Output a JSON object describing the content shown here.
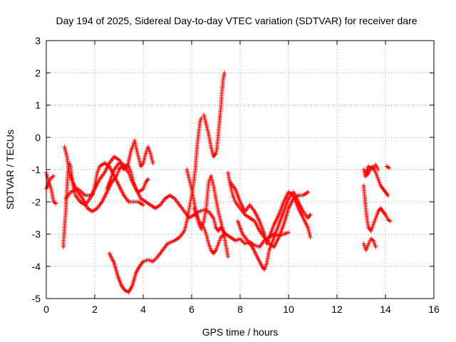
{
  "chart_data": {
    "type": "scatter",
    "title": "Day 194 of 2025, Sidereal Day-to-day VTEC variation (SDTVAR) for receiver dare",
    "xlabel": "GPS time / hours",
    "ylabel": "SDTVAR / TECUs",
    "xlim": [
      0,
      16
    ],
    "ylim": [
      -5,
      3
    ],
    "xticks": [
      "0",
      "2",
      "4",
      "6",
      "8",
      "10",
      "12",
      "14",
      "16"
    ],
    "yticks": [
      "-5",
      "-4",
      "-3",
      "-2",
      "-1",
      "0",
      "1",
      "2",
      "3"
    ],
    "grid": true,
    "marker": "plus",
    "colors": {
      "series": "#ff0000",
      "grid": "#a0a0a0"
    },
    "series": [
      {
        "points": [
          [
            0.0,
            -1.1
          ],
          [
            0.1,
            -1.4
          ],
          [
            0.2,
            -1.6
          ],
          [
            0.3,
            -2.0
          ],
          [
            0.4,
            -2.05
          ]
        ]
      },
      {
        "points": [
          [
            0.0,
            -1.6
          ],
          [
            0.15,
            -1.3
          ],
          [
            0.3,
            -1.2
          ]
        ]
      },
      {
        "points": [
          [
            0.7,
            -3.4
          ],
          [
            0.75,
            -2.8
          ],
          [
            0.8,
            -2.3
          ],
          [
            0.85,
            -1.6
          ],
          [
            0.9,
            -1.0
          ],
          [
            0.95,
            -0.8
          ],
          [
            1.0,
            -0.9
          ],
          [
            1.05,
            -1.2
          ],
          [
            1.1,
            -1.5
          ],
          [
            1.2,
            -1.8
          ],
          [
            1.4,
            -2.0
          ],
          [
            1.6,
            -2.1
          ],
          [
            1.8,
            -1.9
          ],
          [
            2.0,
            -1.6
          ],
          [
            2.2,
            -1.3
          ],
          [
            2.4,
            -1.1
          ],
          [
            2.6,
            -0.8
          ],
          [
            2.8,
            -0.6
          ],
          [
            3.0,
            -0.7
          ],
          [
            3.2,
            -0.9
          ],
          [
            3.4,
            -1.1
          ],
          [
            3.5,
            -1.3
          ],
          [
            3.7,
            -1.6
          ],
          [
            3.9,
            -1.9
          ],
          [
            4.1,
            -2.0
          ],
          [
            4.3,
            -2.1
          ],
          [
            4.5,
            -2.2
          ],
          [
            4.7,
            -2.1
          ],
          [
            4.9,
            -1.9
          ],
          [
            5.1,
            -1.8
          ],
          [
            5.3,
            -1.9
          ],
          [
            5.5,
            -2.1
          ],
          [
            5.7,
            -2.3
          ],
          [
            5.9,
            -2.5
          ],
          [
            6.1,
            -2.4
          ],
          [
            6.3,
            -2.3
          ],
          [
            6.5,
            -2.25
          ],
          [
            6.7,
            -2.3
          ],
          [
            6.9,
            -2.5
          ],
          [
            7.0,
            -2.8
          ],
          [
            7.1,
            -2.9
          ],
          [
            7.2,
            -2.8
          ],
          [
            7.3,
            -2.9
          ],
          [
            7.4,
            -3.0
          ]
        ]
      },
      {
        "points": [
          [
            0.75,
            -0.3
          ],
          [
            0.85,
            -0.6
          ],
          [
            0.95,
            -1.1
          ],
          [
            1.1,
            -1.4
          ],
          [
            1.3,
            -1.7
          ],
          [
            1.5,
            -1.9
          ],
          [
            1.7,
            -2.2
          ],
          [
            1.9,
            -2.3
          ],
          [
            2.1,
            -2.2
          ],
          [
            2.3,
            -2.0
          ],
          [
            2.5,
            -1.7
          ],
          [
            2.7,
            -1.4
          ],
          [
            2.9,
            -1.2
          ],
          [
            3.0,
            -1.0
          ],
          [
            3.1,
            -0.9
          ],
          [
            3.2,
            -1.0
          ],
          [
            3.35,
            -0.9
          ],
          [
            3.5,
            -0.4
          ],
          [
            3.6,
            -0.2
          ],
          [
            3.65,
            -0.1
          ],
          [
            3.7,
            -0.3
          ],
          [
            3.8,
            -0.6
          ],
          [
            3.9,
            -0.9
          ],
          [
            4.0,
            -0.8
          ],
          [
            4.1,
            -0.5
          ],
          [
            4.2,
            -0.3
          ],
          [
            4.3,
            -0.5
          ],
          [
            4.4,
            -0.8
          ]
        ]
      },
      {
        "points": [
          [
            0.8,
            -1.9
          ],
          [
            1.0,
            -1.7
          ],
          [
            1.3,
            -1.6
          ],
          [
            1.6,
            -1.8
          ],
          [
            1.9,
            -1.8
          ],
          [
            2.0,
            -1.5
          ],
          [
            2.1,
            -1.1
          ],
          [
            2.2,
            -0.9
          ],
          [
            2.4,
            -0.8
          ],
          [
            2.6,
            -0.9
          ],
          [
            2.8,
            -1.2
          ],
          [
            3.0,
            -1.5
          ],
          [
            3.2,
            -1.8
          ],
          [
            3.4,
            -2.0
          ],
          [
            3.6,
            -2.0
          ],
          [
            3.8,
            -2.0
          ],
          [
            4.0,
            -2.1
          ]
        ]
      },
      {
        "points": [
          [
            2.5,
            -1.6
          ],
          [
            2.7,
            -1.2
          ],
          [
            2.8,
            -1.0
          ],
          [
            3.0,
            -0.8
          ],
          [
            3.2,
            -0.85
          ],
          [
            3.4,
            -0.9
          ],
          [
            3.5,
            -1.1
          ],
          [
            3.6,
            -1.4
          ],
          [
            3.7,
            -1.6
          ],
          [
            3.8,
            -1.7
          ],
          [
            4.0,
            -1.6
          ],
          [
            4.1,
            -1.4
          ],
          [
            4.2,
            -1.3
          ]
        ]
      },
      {
        "points": [
          [
            2.6,
            -3.6
          ],
          [
            2.8,
            -3.9
          ],
          [
            2.95,
            -4.3
          ],
          [
            3.1,
            -4.6
          ],
          [
            3.25,
            -4.75
          ],
          [
            3.4,
            -4.8
          ],
          [
            3.55,
            -4.6
          ],
          [
            3.7,
            -4.2
          ],
          [
            3.85,
            -4.0
          ],
          [
            4.0,
            -3.85
          ],
          [
            4.2,
            -3.8
          ],
          [
            4.4,
            -3.85
          ],
          [
            4.6,
            -3.7
          ],
          [
            4.8,
            -3.5
          ],
          [
            5.0,
            -3.3
          ],
          [
            5.3,
            -3.2
          ],
          [
            5.5,
            -3.1
          ],
          [
            5.7,
            -2.9
          ],
          [
            5.8,
            -2.6
          ],
          [
            5.9,
            -2.2
          ],
          [
            6.0,
            -1.8
          ],
          [
            6.1,
            -1.3
          ],
          [
            6.15,
            -1.0
          ],
          [
            6.2,
            -0.5
          ],
          [
            6.25,
            -0.1
          ],
          [
            6.3,
            0.2
          ],
          [
            6.35,
            0.5
          ],
          [
            6.4,
            0.6
          ]
        ]
      },
      {
        "points": [
          [
            5.8,
            -1.0
          ],
          [
            5.9,
            -1.3
          ],
          [
            6.0,
            -1.6
          ],
          [
            6.1,
            -2.0
          ],
          [
            6.2,
            -2.4
          ],
          [
            6.3,
            -2.7
          ],
          [
            6.4,
            -2.85
          ],
          [
            6.5,
            -2.6
          ],
          [
            6.6,
            -2.2
          ],
          [
            6.65,
            -1.8
          ],
          [
            6.7,
            -1.4
          ],
          [
            6.8,
            -1.2
          ],
          [
            6.9,
            -1.5
          ],
          [
            7.0,
            -1.9
          ],
          [
            7.1,
            -2.3
          ],
          [
            7.2,
            -2.6
          ],
          [
            7.3,
            -2.9
          ],
          [
            7.4,
            -3.3
          ],
          [
            7.5,
            -3.7
          ]
        ]
      },
      {
        "points": [
          [
            6.5,
            0.7
          ],
          [
            6.6,
            0.4
          ],
          [
            6.7,
            0.1
          ],
          [
            6.8,
            -0.3
          ],
          [
            6.9,
            -0.6
          ],
          [
            7.0,
            -0.5
          ],
          [
            7.05,
            -0.3
          ],
          [
            7.1,
            0.1
          ],
          [
            7.15,
            0.5
          ],
          [
            7.2,
            0.9
          ],
          [
            7.25,
            1.4
          ],
          [
            7.3,
            1.8
          ],
          [
            7.35,
            2.0
          ]
        ]
      },
      {
        "points": [
          [
            6.1,
            -2.2
          ],
          [
            6.3,
            -2.6
          ],
          [
            6.5,
            -2.8
          ],
          [
            6.6,
            -3.0
          ],
          [
            6.7,
            -3.3
          ],
          [
            6.8,
            -3.5
          ],
          [
            6.9,
            -3.6
          ],
          [
            7.0,
            -3.5
          ],
          [
            7.1,
            -3.3
          ],
          [
            7.2,
            -3.1
          ],
          [
            7.4,
            -3.0
          ],
          [
            7.6,
            -3.1
          ],
          [
            7.8,
            -3.2
          ],
          [
            8.0,
            -3.15
          ],
          [
            8.2,
            -3.3
          ],
          [
            8.4,
            -3.25
          ],
          [
            8.6,
            -3.35
          ],
          [
            8.8,
            -3.4
          ],
          [
            9.0,
            -3.2
          ],
          [
            9.2,
            -3.1
          ],
          [
            9.4,
            -3.0
          ],
          [
            9.6,
            -3.05
          ],
          [
            9.8,
            -3.0
          ],
          [
            10.0,
            -2.95
          ]
        ]
      },
      {
        "points": [
          [
            7.5,
            -1.1
          ],
          [
            7.6,
            -1.5
          ],
          [
            7.7,
            -1.8
          ],
          [
            7.8,
            -2.0
          ],
          [
            8.0,
            -2.2
          ],
          [
            8.2,
            -2.4
          ],
          [
            8.4,
            -2.5
          ],
          [
            8.6,
            -2.6
          ],
          [
            8.8,
            -2.9
          ],
          [
            9.0,
            -3.1
          ],
          [
            9.2,
            -3.3
          ],
          [
            9.4,
            -3.4
          ],
          [
            9.6,
            -3.1
          ],
          [
            9.8,
            -2.7
          ],
          [
            10.0,
            -2.2
          ],
          [
            10.2,
            -1.9
          ],
          [
            10.4,
            -1.8
          ],
          [
            10.6,
            -1.8
          ],
          [
            10.8,
            -1.7
          ]
        ]
      },
      {
        "points": [
          [
            7.6,
            -1.4
          ],
          [
            7.8,
            -1.6
          ],
          [
            8.0,
            -2.0
          ],
          [
            8.2,
            -2.3
          ],
          [
            8.4,
            -2.1
          ],
          [
            8.6,
            -2.3
          ],
          [
            8.8,
            -2.6
          ],
          [
            9.0,
            -3.0
          ],
          [
            9.1,
            -3.3
          ],
          [
            9.2,
            -3.1
          ],
          [
            9.4,
            -2.7
          ],
          [
            9.6,
            -2.4
          ],
          [
            9.8,
            -2.0
          ],
          [
            10.0,
            -1.7
          ],
          [
            10.2,
            -1.8
          ],
          [
            10.4,
            -2.2
          ],
          [
            10.6,
            -2.5
          ],
          [
            10.8,
            -2.8
          ],
          [
            10.9,
            -3.1
          ]
        ]
      },
      {
        "points": [
          [
            7.9,
            -2.6
          ],
          [
            8.1,
            -3.0
          ],
          [
            8.3,
            -3.2
          ],
          [
            8.5,
            -3.4
          ],
          [
            8.7,
            -3.7
          ],
          [
            8.9,
            -4.0
          ],
          [
            9.0,
            -4.1
          ],
          [
            9.1,
            -3.9
          ],
          [
            9.2,
            -3.5
          ],
          [
            9.4,
            -3.1
          ],
          [
            9.6,
            -2.7
          ],
          [
            9.8,
            -2.3
          ],
          [
            10.0,
            -1.9
          ],
          [
            10.2,
            -1.7
          ],
          [
            10.4,
            -2.0
          ],
          [
            10.6,
            -2.3
          ],
          [
            10.8,
            -2.5
          ],
          [
            10.9,
            -2.4
          ]
        ]
      },
      {
        "points": [
          [
            13.1,
            -1.5
          ],
          [
            13.15,
            -1.9
          ],
          [
            13.2,
            -2.3
          ],
          [
            13.25,
            -2.6
          ],
          [
            13.3,
            -2.8
          ],
          [
            13.4,
            -2.9
          ],
          [
            13.5,
            -2.7
          ],
          [
            13.6,
            -2.5
          ],
          [
            13.7,
            -2.3
          ],
          [
            13.8,
            -2.2
          ],
          [
            13.9,
            -2.3
          ],
          [
            14.0,
            -2.4
          ],
          [
            14.1,
            -2.55
          ],
          [
            14.2,
            -2.6
          ]
        ]
      },
      {
        "points": [
          [
            13.1,
            -1.0
          ],
          [
            13.2,
            -1.2
          ],
          [
            13.3,
            -1.1
          ],
          [
            13.4,
            -0.95
          ],
          [
            13.5,
            -0.9
          ],
          [
            13.6,
            -1.1
          ],
          [
            13.7,
            -1.3
          ],
          [
            13.8,
            -1.5
          ],
          [
            13.9,
            -1.6
          ],
          [
            14.0,
            -1.7
          ],
          [
            14.1,
            -1.8
          ]
        ]
      },
      {
        "points": [
          [
            13.15,
            -1.2
          ],
          [
            13.3,
            -0.9
          ],
          [
            13.5,
            -1.0
          ],
          [
            13.6,
            -0.85
          ],
          [
            13.7,
            -1.0
          ]
        ]
      },
      {
        "points": [
          [
            13.1,
            -3.3
          ],
          [
            13.2,
            -3.5
          ],
          [
            13.3,
            -3.3
          ],
          [
            13.4,
            -3.15
          ],
          [
            13.5,
            -3.2
          ],
          [
            13.6,
            -3.4
          ]
        ]
      },
      {
        "points": [
          [
            14.05,
            -0.9
          ],
          [
            14.15,
            -0.95
          ]
        ]
      }
    ]
  }
}
